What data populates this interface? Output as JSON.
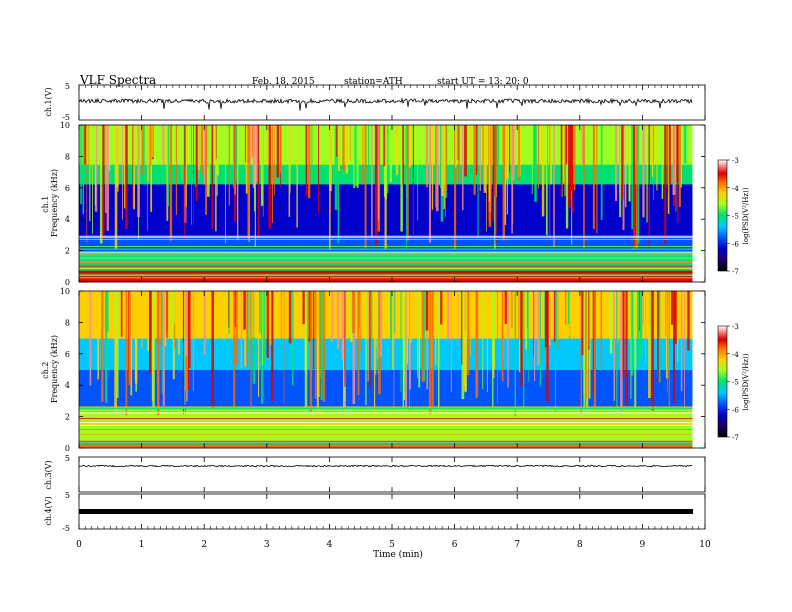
{
  "header": {
    "title": "VLF  Spectra",
    "date": "Feb. 18, 2015",
    "station": "station=ATH",
    "start": "start  UT  =   13: 20: 0"
  },
  "colorbar": {
    "label": "log(PSD(V²/Hz))",
    "ticks": [
      "-3",
      "-4",
      "-5",
      "-6",
      "-7"
    ],
    "colormap": [
      "#000000",
      "#1a0066",
      "#0000cc",
      "#0055ff",
      "#00c8ff",
      "#00e070",
      "#a0ff20",
      "#ffd000",
      "#ff6a00",
      "#dd0000",
      "#ff8c8c",
      "#ffffff"
    ]
  },
  "chart_data": [
    {
      "type": "line",
      "name": "ch1-waveform",
      "ylabel": "ch.1(V)",
      "ylim": [
        -5,
        5
      ],
      "yticks": [
        "5",
        "-5"
      ],
      "x": [
        0,
        1,
        2,
        3,
        4,
        5,
        6,
        7,
        8,
        9,
        9.8
      ],
      "y": [
        0,
        0.3,
        -0.5,
        0.4,
        0.2,
        -0.3,
        0.1,
        0.5,
        -0.2,
        0.3,
        0
      ]
    },
    {
      "type": "heatmap",
      "name": "ch1-spectrogram",
      "ylabel": "ch.1\nFrequency  (kHz)",
      "ylim": [
        0,
        10
      ],
      "yticks": [
        "0",
        "2",
        "4",
        "6",
        "8",
        "10"
      ],
      "time_range_min": [
        0,
        9.8
      ]
    },
    {
      "type": "heatmap",
      "name": "ch2-spectrogram",
      "ylabel": "ch.2\nFrequency  (kHz)",
      "ylim": [
        0,
        10
      ],
      "yticks": [
        "0",
        "2",
        "4",
        "6",
        "8",
        "10"
      ],
      "time_range_min": [
        0,
        9.8
      ]
    },
    {
      "type": "line",
      "name": "ch3-waveform",
      "ylabel": "ch.3(V)",
      "ylim": [
        -5,
        5
      ],
      "yticks": [
        "5",
        "-5"
      ],
      "x": [
        0,
        9.8
      ],
      "y": [
        0,
        0
      ]
    },
    {
      "type": "line",
      "name": "ch4-waveform",
      "ylabel": "ch.4(V)",
      "ylim": [
        -5,
        5
      ],
      "yticks": [
        "5",
        "-5"
      ],
      "x": [
        0,
        9.8
      ],
      "y": [
        0,
        0
      ]
    }
  ],
  "xaxis": {
    "label": "Time  (min)",
    "ticks": [
      "0",
      "1",
      "2",
      "3",
      "4",
      "5",
      "6",
      "7",
      "8",
      "9",
      "10"
    ],
    "range": [
      0,
      10
    ]
  }
}
